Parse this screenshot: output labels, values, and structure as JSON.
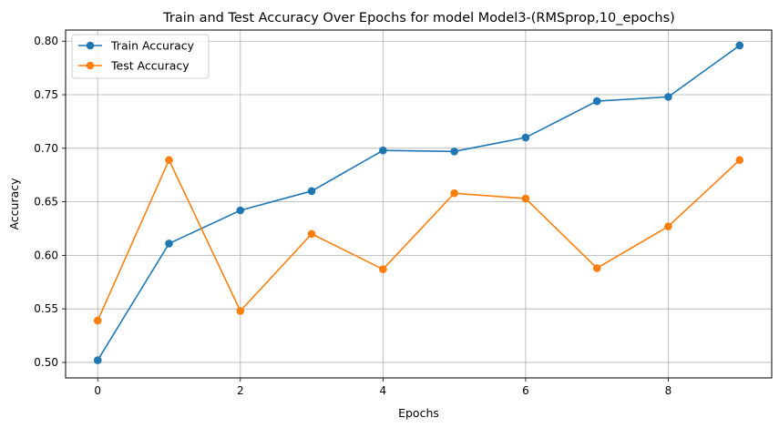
{
  "chart_data": {
    "type": "line",
    "title": "Train and Test Accuracy Over Epochs for model Model3-(RMSprop,10_epochs)",
    "xlabel": "Epochs",
    "ylabel": "Accuracy",
    "x": [
      0,
      1,
      2,
      3,
      4,
      5,
      6,
      7,
      8,
      9
    ],
    "xlim": [
      -0.45,
      9.45
    ],
    "ylim": [
      0.4855,
      0.8104
    ],
    "xticks": [
      0,
      2,
      4,
      6,
      8
    ],
    "yticks": [
      0.5,
      0.55,
      0.6,
      0.65,
      0.7,
      0.75,
      0.8
    ],
    "ytick_labels": [
      "0.50",
      "0.55",
      "0.60",
      "0.65",
      "0.70",
      "0.75",
      "0.80"
    ],
    "grid": true,
    "legend_position": "top-left",
    "series": [
      {
        "name": "Train Accuracy",
        "color": "#1f77b4",
        "marker": "circle",
        "values": [
          0.502,
          0.611,
          0.642,
          0.66,
          0.698,
          0.697,
          0.71,
          0.744,
          0.748,
          0.796
        ]
      },
      {
        "name": "Test Accuracy",
        "color": "#ff7f0e",
        "marker": "circle",
        "values": [
          0.539,
          0.689,
          0.548,
          0.62,
          0.587,
          0.658,
          0.653,
          0.588,
          0.627,
          0.689
        ]
      }
    ]
  }
}
